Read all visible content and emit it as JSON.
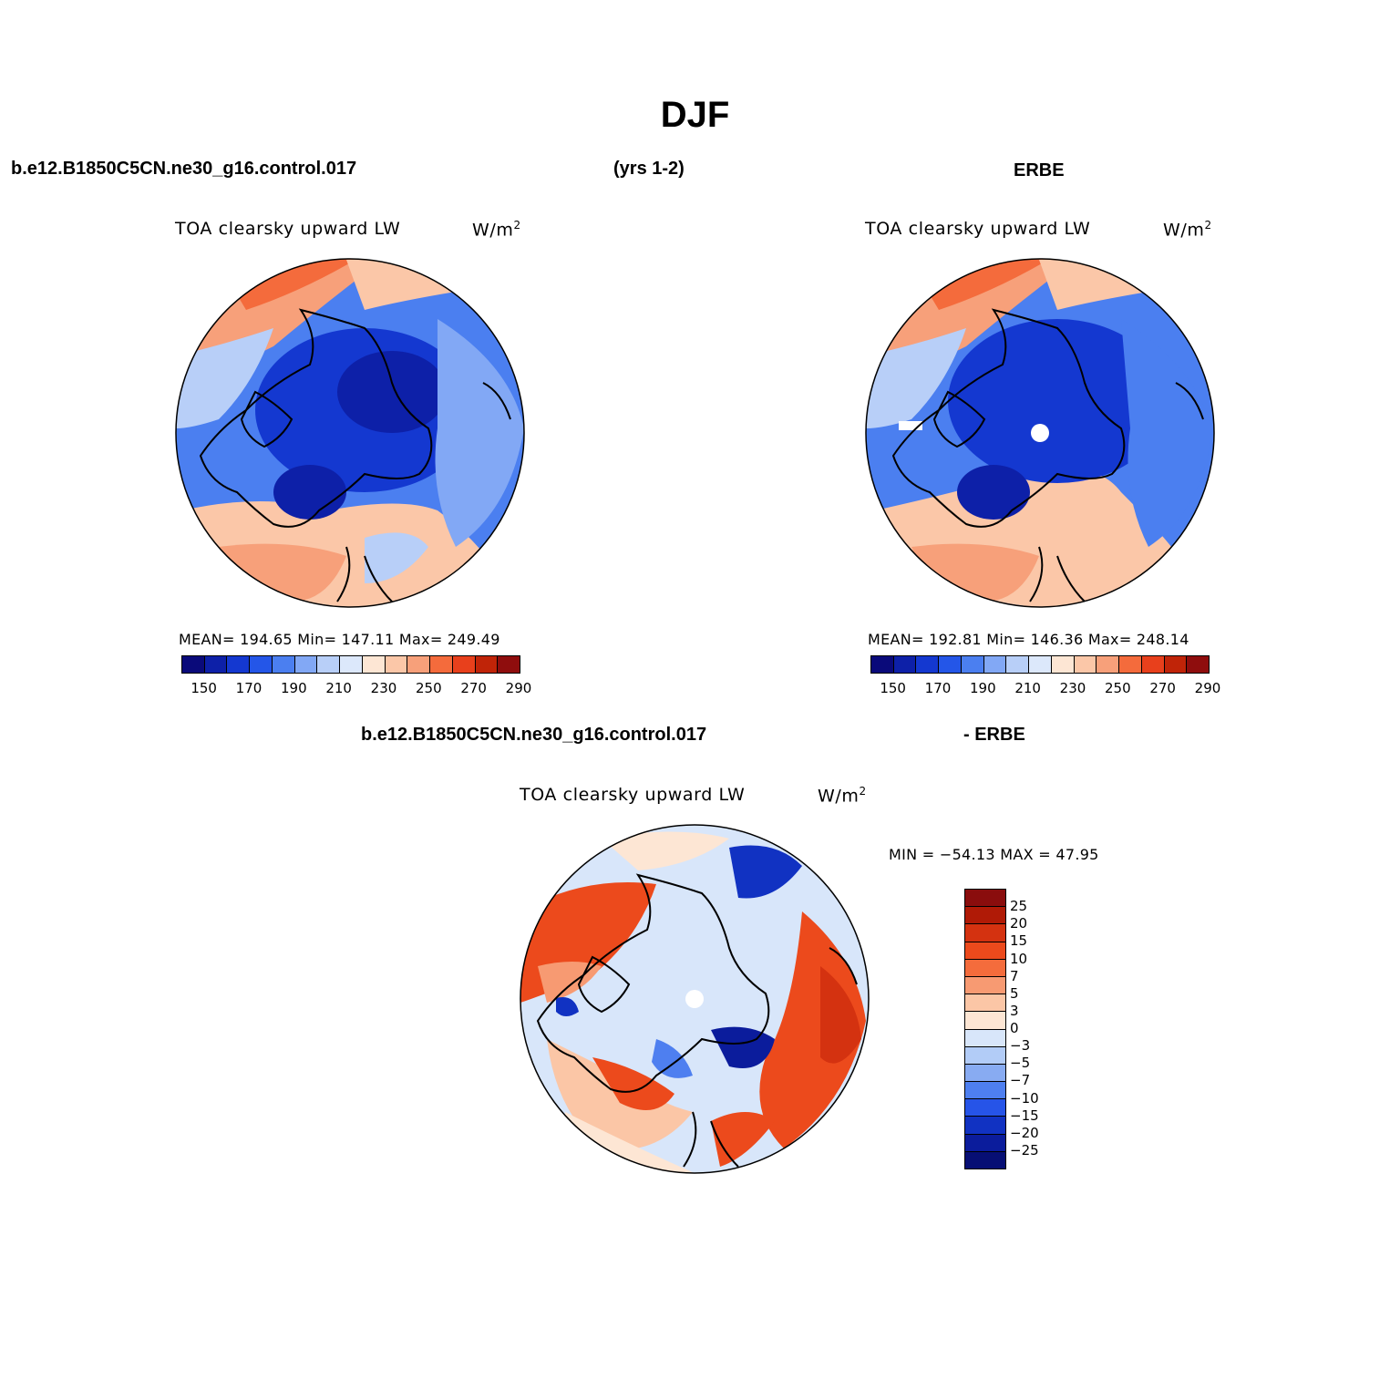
{
  "page": {
    "title": "DJF",
    "case_name": "b.e12.B1850C5CN.ne30_g16.control.017",
    "years": "(yrs 1-2)",
    "obs_name": "ERBE",
    "diff_case": "b.e12.B1850C5CN.ne30_g16.control.017",
    "diff_obs": "- ERBE"
  },
  "panels": {
    "model": {
      "variable": "TOA clearsky upward LW",
      "units": "W/m",
      "units_sup": "2",
      "stats": "MEAN= 194.65   Min= 147.11   Max= 249.49"
    },
    "obs": {
      "variable": "TOA clearsky upward LW",
      "units": "W/m",
      "units_sup": "2",
      "stats": "MEAN= 192.81   Min= 146.36   Max= 248.14"
    },
    "diff": {
      "variable": "TOA clearsky upward LW",
      "units": "W/m",
      "units_sup": "2",
      "stats": "MIN = −54.13 MAX =  47.95"
    }
  },
  "colorbar_abs": {
    "labels": [
      "150",
      "170",
      "190",
      "210",
      "230",
      "250",
      "270",
      "290"
    ],
    "colors": [
      "#0a0a7a",
      "#0d20a8",
      "#1438d0",
      "#2456e8",
      "#4b7ff0",
      "#82a8f5",
      "#b8cff8",
      "#dce8fb",
      "#fde6d4",
      "#fbc7a8",
      "#f7a07a",
      "#f46b3c",
      "#e8401c",
      "#c02408",
      "#8f0d0d"
    ]
  },
  "colorbar_diff": {
    "labels": [
      "25",
      "20",
      "15",
      "10",
      "7",
      "5",
      "3",
      "0",
      "−3",
      "−5",
      "−7",
      "−10",
      "−15",
      "−20",
      "−25"
    ],
    "colors": [
      "#8a0d0d",
      "#b01a06",
      "#d43210",
      "#ec4a1c",
      "#f46c3c",
      "#f79a72",
      "#fbc6a6",
      "#fde6d4",
      "#d8e6fa",
      "#b2ccf7",
      "#88abf2",
      "#4e7ff0",
      "#2654e8",
      "#1132c2",
      "#0b1c9c",
      "#070f74"
    ]
  }
}
